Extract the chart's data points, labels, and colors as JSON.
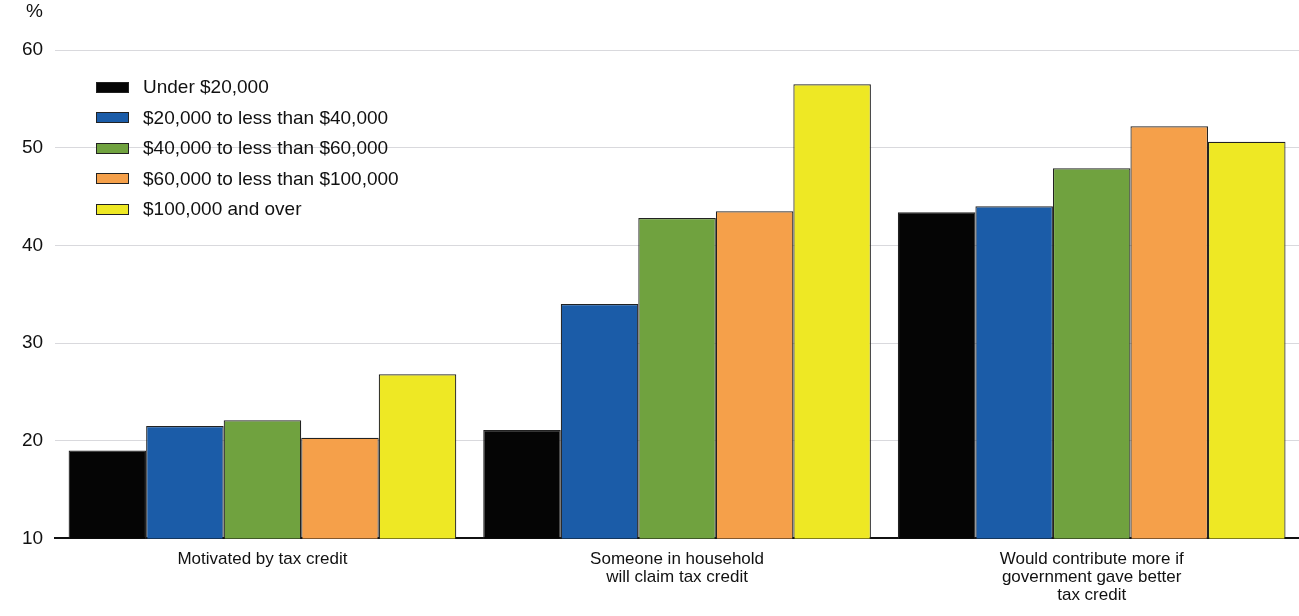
{
  "chart_data": {
    "type": "bar",
    "ylabel": "%",
    "categories": [
      "Motivated by tax credit",
      "Someone in household will claim tax credit",
      "Would contribute more if government gave better tax credit"
    ],
    "series": [
      {
        "name": "Under $20,000",
        "color": "#050505",
        "values": [
          19.0,
          21.1,
          43.4
        ]
      },
      {
        "name": "$20,000 to less than $40,000",
        "color": "#1b5ca8",
        "values": [
          21.5,
          34.0,
          44.0
        ]
      },
      {
        "name": "$40,000 to less than $60,000",
        "color": "#70a23f",
        "values": [
          22.1,
          42.8,
          47.9
        ]
      },
      {
        "name": "$60,000 to less than $100,000",
        "color": "#f5a04a",
        "values": [
          20.3,
          43.5,
          52.2
        ]
      },
      {
        "name": "$100,000 and over",
        "color": "#eee824",
        "values": [
          26.8,
          56.5,
          50.6
        ]
      }
    ],
    "ylim": [
      10,
      60
    ],
    "yticks": [
      10,
      20,
      30,
      40,
      50,
      60
    ],
    "grid": "y",
    "legend": "top left"
  }
}
